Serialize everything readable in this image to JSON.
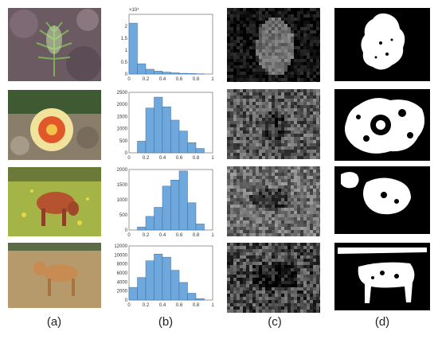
{
  "captions": [
    "(a)",
    "(b)",
    "(c)",
    "(d)"
  ],
  "colors": {
    "bar": "#6fa8dc",
    "bar_edge": "#3b6f9e"
  },
  "chart_data": [
    {
      "type": "bar",
      "row": 1,
      "y_exponent": "×10⁴",
      "x_ticks": [
        "0",
        "0.2",
        "0.4",
        "0.6",
        "0.8",
        "1"
      ],
      "y_ticks": [
        "0",
        "0.5",
        "1",
        "1.5",
        "2"
      ],
      "ylim": [
        0,
        2.5
      ],
      "x": [
        0.05,
        0.15,
        0.25,
        0.35,
        0.45,
        0.55,
        0.65,
        0.75,
        0.85
      ],
      "values": [
        2.13,
        0.43,
        0.2,
        0.12,
        0.08,
        0.05,
        0.03,
        0.02,
        0.01
      ]
    },
    {
      "type": "bar",
      "row": 2,
      "x_ticks": [
        "0",
        "0.2",
        "0.4",
        "0.6",
        "0.8",
        "1"
      ],
      "y_ticks": [
        "0",
        "500",
        "1000",
        "1500",
        "2000",
        "2500"
      ],
      "ylim": [
        0,
        2500
      ],
      "x": [
        0.15,
        0.25,
        0.35,
        0.45,
        0.55,
        0.65,
        0.75,
        0.85
      ],
      "values": [
        480,
        1850,
        2300,
        1900,
        1350,
        900,
        420,
        180
      ]
    },
    {
      "type": "bar",
      "row": 3,
      "x_ticks": [
        "0",
        "0.2",
        "0.4",
        "0.6",
        "0.8",
        "1"
      ],
      "y_ticks": [
        "0",
        "500",
        "1000",
        "1500",
        "2000"
      ],
      "ylim": [
        0,
        2000
      ],
      "x": [
        0.15,
        0.25,
        0.35,
        0.45,
        0.55,
        0.65,
        0.75,
        0.85
      ],
      "values": [
        100,
        450,
        750,
        1450,
        1650,
        1950,
        900,
        200
      ]
    },
    {
      "type": "bar",
      "row": 4,
      "x_ticks": [
        "0",
        "0.2",
        "0.4",
        "0.6",
        "0.8",
        "1"
      ],
      "y_ticks": [
        "0",
        "2000",
        "4000",
        "6000",
        "8000",
        "10000",
        "12000"
      ],
      "ylim": [
        0,
        12000
      ],
      "x": [
        0.05,
        0.15,
        0.25,
        0.35,
        0.45,
        0.55,
        0.65,
        0.75,
        0.85
      ],
      "values": [
        2800,
        5000,
        8700,
        10200,
        9500,
        6600,
        3900,
        1500,
        300
      ]
    }
  ]
}
